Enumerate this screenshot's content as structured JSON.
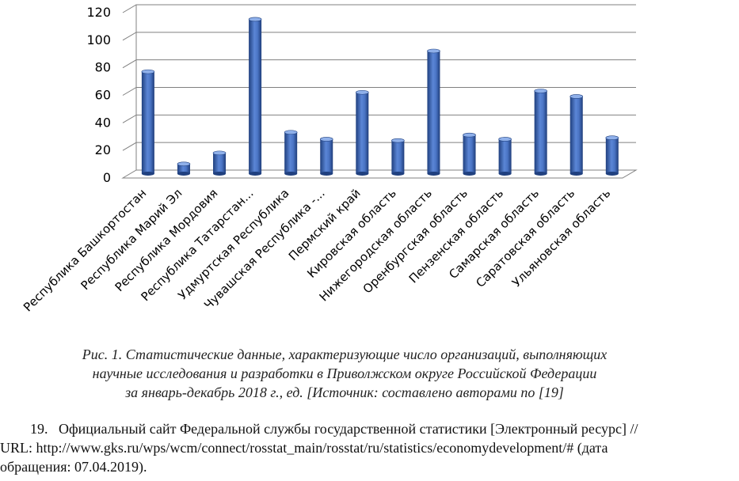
{
  "chart_data": {
    "type": "bar",
    "categories": [
      "Республика Башкортостан",
      "Республика Марий Эл",
      "Республика Мордовия",
      "Республика Татарстан...",
      "Удмуртская Республика",
      "Чувашская Республика -...",
      "Пермский край",
      "Кировская область",
      "Нижегородская область",
      "Оренбургская область",
      "Пензенская область",
      "Самарская область",
      "Саратовская область",
      "Ульяновская область"
    ],
    "values": [
      74,
      7,
      15,
      112,
      30,
      25,
      59,
      24,
      89,
      28,
      25,
      60,
      56,
      26
    ],
    "ylim": [
      0,
      120
    ],
    "yticks": [
      "0",
      "20",
      "40",
      "60",
      "80",
      "100",
      "120"
    ],
    "grid": true,
    "style": "3d-cylinder",
    "colors": {
      "bar": "#4a74c4",
      "bar_dark": "#20407f",
      "bar_light": "#8fb0ea",
      "grid": "#808080"
    }
  },
  "caption": {
    "line1": "Рис. 1. Статистические данные, характеризующие число организаций, выполняющих",
    "line2": "научные исследования и разработки в Приволжском округе Российской Федерации",
    "line3": "за январь-декабрь 2018 г., ед. [Источник: составлено авторами по [19]"
  },
  "reference": {
    "line1": "19.   Официальный сайт Федеральной службы государственной статистики [Электронный ресурс] //",
    "line2": "URL: http://www.gks.ru/wps/wcm/connect/rosstat_main/rosstat/ru/statistics/economydevelopment/# (дата",
    "line3": "обращения: 07.04.2019)."
  }
}
